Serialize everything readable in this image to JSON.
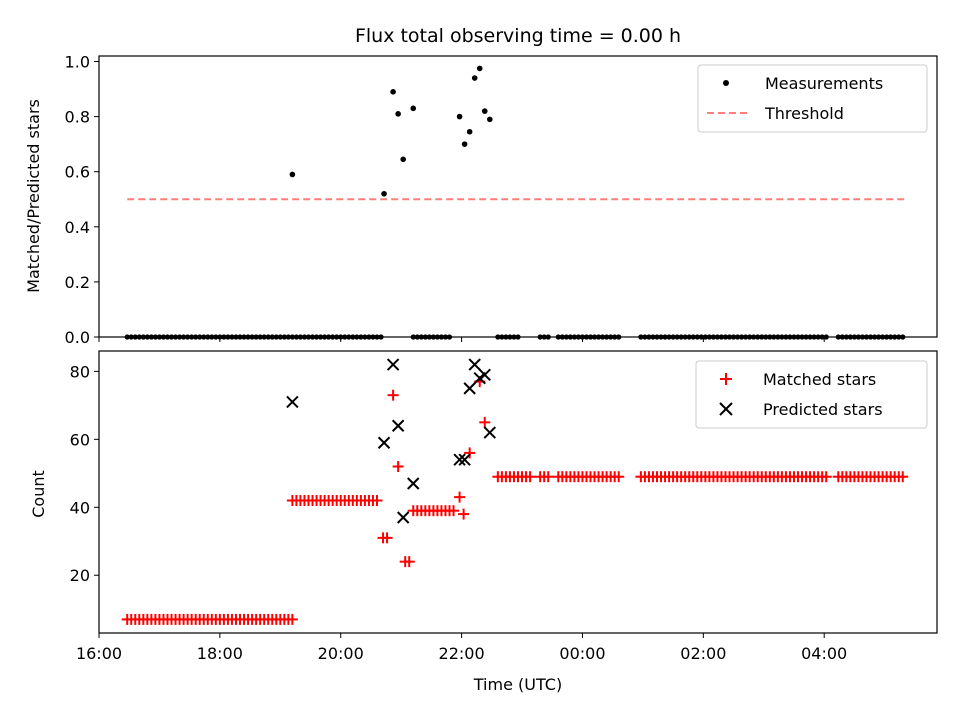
{
  "chart_data": [
    {
      "type": "scatter",
      "title": "Flux total observing time = 0.00 h",
      "xlabel": "",
      "ylabel": "Matched/Predicted stars",
      "ylim": [
        0,
        1.02
      ],
      "yticks": [
        "0.0",
        "0.2",
        "0.4",
        "0.6",
        "0.8",
        "1.0"
      ],
      "xlim": [
        "16:00",
        "05:52"
      ],
      "grid": false,
      "legend_position": "top-right",
      "series": [
        {
          "name": "Measurements",
          "kind": "scatter",
          "marker": "dot",
          "color": "#000000",
          "points": [
            [
              "19:12",
              0.59
            ],
            [
              "20:43",
              0.52
            ],
            [
              "20:52",
              0.89
            ],
            [
              "20:57",
              0.81
            ],
            [
              "21:02",
              0.645
            ],
            [
              "21:12",
              0.83
            ],
            [
              "21:58",
              0.8
            ],
            [
              "22:03",
              0.7
            ],
            [
              "22:08",
              0.745
            ],
            [
              "22:13",
              0.94
            ],
            [
              "22:18",
              0.975
            ],
            [
              "22:23",
              0.82
            ],
            [
              "22:28",
              0.79
            ]
          ],
          "zero_time_ranges": [
            [
              "16:28",
              "20:40"
            ],
            [
              "21:12",
              "21:48"
            ],
            [
              "22:36",
              "22:56"
            ],
            [
              "23:18",
              "23:28"
            ],
            [
              "23:36",
              "00:38"
            ],
            [
              "00:58",
              "04:04"
            ],
            [
              "04:14",
              "05:20"
            ]
          ]
        },
        {
          "name": "Threshold",
          "kind": "line",
          "style": "dashed",
          "color": "#ff7f7f",
          "x": [
            "16:28",
            "05:20"
          ],
          "y": [
            0.5,
            0.5
          ]
        }
      ]
    },
    {
      "type": "scatter",
      "title": "",
      "xlabel": "Time (UTC)",
      "ylabel": "Count",
      "ylim": [
        3,
        86
      ],
      "yticks": [
        "20",
        "40",
        "60",
        "80"
      ],
      "xticks": [
        "16:00",
        "18:00",
        "20:00",
        "22:00",
        "00:00",
        "02:00",
        "04:00"
      ],
      "xlim": [
        "16:00",
        "05:52"
      ],
      "grid": false,
      "legend_position": "top-right",
      "series": [
        {
          "name": "Matched stars",
          "marker": "plus",
          "color": "#ff0000",
          "runs": [
            [
              "16:28",
              "19:12",
              7
            ],
            [
              "19:12",
              "20:38",
              42
            ],
            [
              "20:42",
              "20:48",
              31
            ],
            [
              "21:04",
              "21:10",
              24
            ],
            [
              "21:12",
              "21:54",
              39
            ],
            [
              "21:58",
              "21:58",
              43
            ],
            [
              "22:02",
              "22:02",
              38
            ],
            [
              "22:08",
              "22:08",
              56
            ],
            [
              "22:36",
              "23:08",
              49
            ],
            [
              "23:18",
              "23:28",
              49
            ],
            [
              "23:36",
              "00:38",
              49
            ],
            [
              "00:58",
              "04:04",
              49
            ],
            [
              "04:14",
              "05:20",
              49
            ]
          ],
          "points": [
            [
              "20:52",
              73
            ],
            [
              "20:57",
              52
            ],
            [
              "22:18",
              77
            ],
            [
              "22:23",
              65
            ]
          ]
        },
        {
          "name": "Predicted stars",
          "marker": "x",
          "color": "#000000",
          "points": [
            [
              "19:12",
              71
            ],
            [
              "20:43",
              59
            ],
            [
              "20:52",
              82
            ],
            [
              "20:57",
              64
            ],
            [
              "21:02",
              37
            ],
            [
              "21:12",
              47
            ],
            [
              "21:58",
              54
            ],
            [
              "22:03",
              54
            ],
            [
              "22:08",
              75
            ],
            [
              "22:13",
              82
            ],
            [
              "22:18",
              78
            ],
            [
              "22:23",
              79
            ],
            [
              "22:28",
              62
            ]
          ]
        }
      ]
    }
  ]
}
